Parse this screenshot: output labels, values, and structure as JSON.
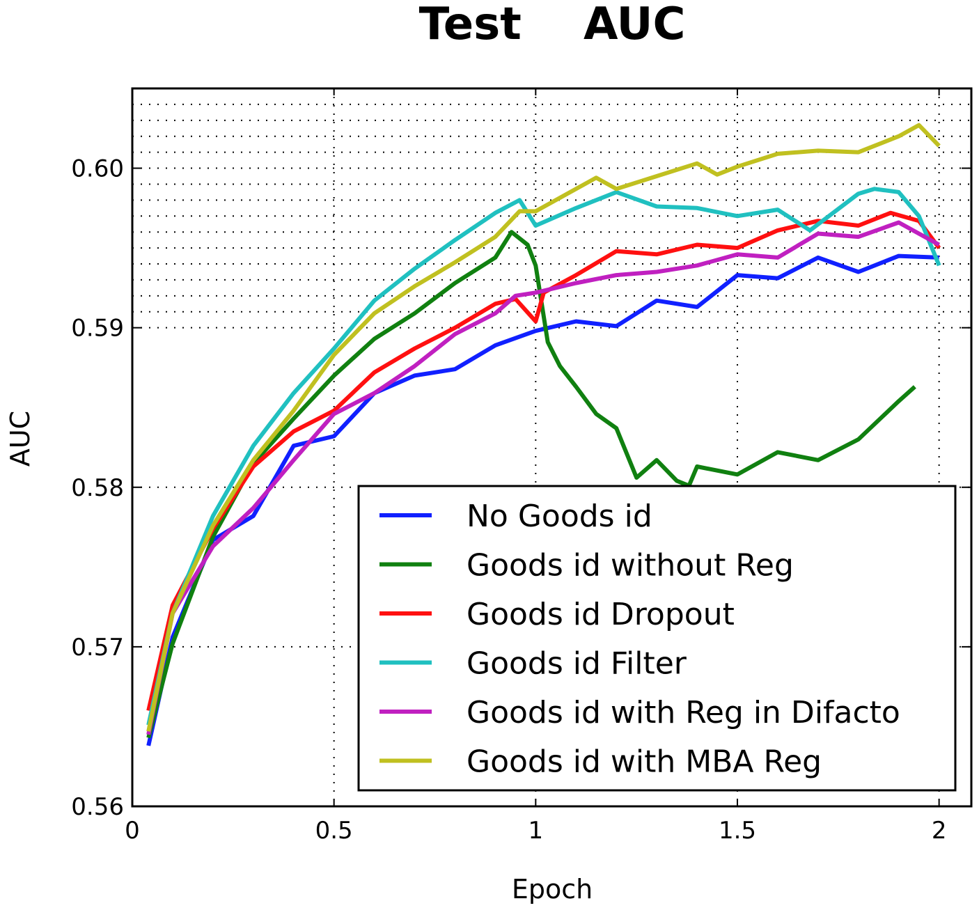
{
  "chart_data": {
    "type": "line",
    "title": "Test    AUC",
    "xlabel": "Epoch",
    "ylabel": "AUC",
    "xlim": [
      0,
      2.08
    ],
    "ylim": [
      0.56,
      0.605
    ],
    "xticks": [
      "0",
      "0.5",
      "1",
      "1.5",
      "2"
    ],
    "yticks": [
      "0.56",
      "0.57",
      "0.58",
      "0.59",
      "0.60"
    ],
    "grid": true,
    "minor_grid_y": "0.001 steps from 0.59 to 0.605",
    "legend_position": "lower-right",
    "series": [
      {
        "name": "No Goods id",
        "color": "#1020ff",
        "x": [
          0.04,
          0.1,
          0.2,
          0.3,
          0.4,
          0.5,
          0.6,
          0.7,
          0.8,
          0.9,
          1.0,
          1.1,
          1.2,
          1.3,
          1.4,
          1.5,
          1.6,
          1.7,
          1.8,
          1.9,
          2.0
        ],
        "y": [
          0.5638,
          0.5706,
          0.5767,
          0.5782,
          0.5826,
          0.5832,
          0.5859,
          0.587,
          0.5874,
          0.5889,
          0.5898,
          0.5904,
          0.5901,
          0.5917,
          0.5913,
          0.5933,
          0.5931,
          0.5944,
          0.5935,
          0.5945,
          0.5944
        ]
      },
      {
        "name": "Goods id without Reg",
        "color": "#108010",
        "x": [
          0.04,
          0.1,
          0.2,
          0.3,
          0.4,
          0.5,
          0.6,
          0.7,
          0.8,
          0.9,
          0.94,
          0.98,
          1.0,
          1.03,
          1.06,
          1.1,
          1.15,
          1.2,
          1.25,
          1.3,
          1.35,
          1.38,
          1.4,
          1.5,
          1.6,
          1.7,
          1.8,
          1.9,
          1.94
        ],
        "y": [
          0.5643,
          0.5702,
          0.5769,
          0.5815,
          0.5843,
          0.587,
          0.5893,
          0.5909,
          0.5928,
          0.5944,
          0.596,
          0.5952,
          0.5939,
          0.5891,
          0.5876,
          0.5863,
          0.5846,
          0.5837,
          0.5806,
          0.5817,
          0.5804,
          0.5801,
          0.5813,
          0.5808,
          0.5822,
          0.5817,
          0.583,
          0.5854,
          0.5863
        ]
      },
      {
        "name": "Goods id Dropout",
        "color": "#ff1010",
        "x": [
          0.04,
          0.1,
          0.2,
          0.3,
          0.4,
          0.5,
          0.6,
          0.7,
          0.8,
          0.9,
          0.95,
          1.0,
          1.02,
          1.1,
          1.2,
          1.3,
          1.4,
          1.5,
          1.6,
          1.7,
          1.8,
          1.88,
          1.95,
          2.0
        ],
        "y": [
          0.566,
          0.5726,
          0.5774,
          0.5813,
          0.5835,
          0.5848,
          0.5872,
          0.5887,
          0.59,
          0.5915,
          0.5918,
          0.5904,
          0.5922,
          0.5933,
          0.5948,
          0.5946,
          0.5952,
          0.595,
          0.5961,
          0.5967,
          0.5964,
          0.5972,
          0.5967,
          0.595
        ]
      },
      {
        "name": "Goods id Filter",
        "color": "#20c0c0",
        "x": [
          0.04,
          0.1,
          0.2,
          0.3,
          0.4,
          0.5,
          0.6,
          0.7,
          0.8,
          0.9,
          0.96,
          1.0,
          1.1,
          1.2,
          1.3,
          1.4,
          1.5,
          1.6,
          1.68,
          1.8,
          1.84,
          1.9,
          1.95,
          2.0
        ],
        "y": [
          0.5651,
          0.5721,
          0.5782,
          0.5826,
          0.5859,
          0.5887,
          0.5917,
          0.5937,
          0.5955,
          0.5972,
          0.598,
          0.5964,
          0.5975,
          0.5985,
          0.5976,
          0.5975,
          0.597,
          0.5974,
          0.5961,
          0.5984,
          0.5987,
          0.5985,
          0.597,
          0.5939
        ]
      },
      {
        "name": "Goods id with Reg in Difacto",
        "color": "#c020c0",
        "x": [
          0.04,
          0.1,
          0.2,
          0.3,
          0.4,
          0.5,
          0.6,
          0.7,
          0.8,
          0.9,
          0.95,
          1.0,
          1.1,
          1.2,
          1.3,
          1.4,
          1.5,
          1.6,
          1.7,
          1.8,
          1.9,
          2.0
        ],
        "y": [
          0.5645,
          0.5721,
          0.5763,
          0.5787,
          0.5817,
          0.5846,
          0.5859,
          0.5876,
          0.5896,
          0.5909,
          0.592,
          0.5922,
          0.5928,
          0.5933,
          0.5935,
          0.5939,
          0.5946,
          0.5944,
          0.5959,
          0.5957,
          0.5966,
          0.5952
        ]
      },
      {
        "name": "Goods id with MBA Reg",
        "color": "#c0c020",
        "x": [
          0.04,
          0.1,
          0.2,
          0.3,
          0.4,
          0.5,
          0.6,
          0.7,
          0.8,
          0.9,
          0.96,
          1.0,
          1.1,
          1.15,
          1.2,
          1.3,
          1.4,
          1.45,
          1.5,
          1.6,
          1.7,
          1.8,
          1.9,
          1.95,
          2.0
        ],
        "y": [
          0.5647,
          0.5721,
          0.5776,
          0.5817,
          0.5848,
          0.5883,
          0.5909,
          0.5926,
          0.5941,
          0.5957,
          0.5973,
          0.5973,
          0.5987,
          0.5994,
          0.5987,
          0.5995,
          0.6003,
          0.5996,
          0.6001,
          0.6009,
          0.6011,
          0.601,
          0.602,
          0.6027,
          0.6014
        ]
      }
    ]
  }
}
